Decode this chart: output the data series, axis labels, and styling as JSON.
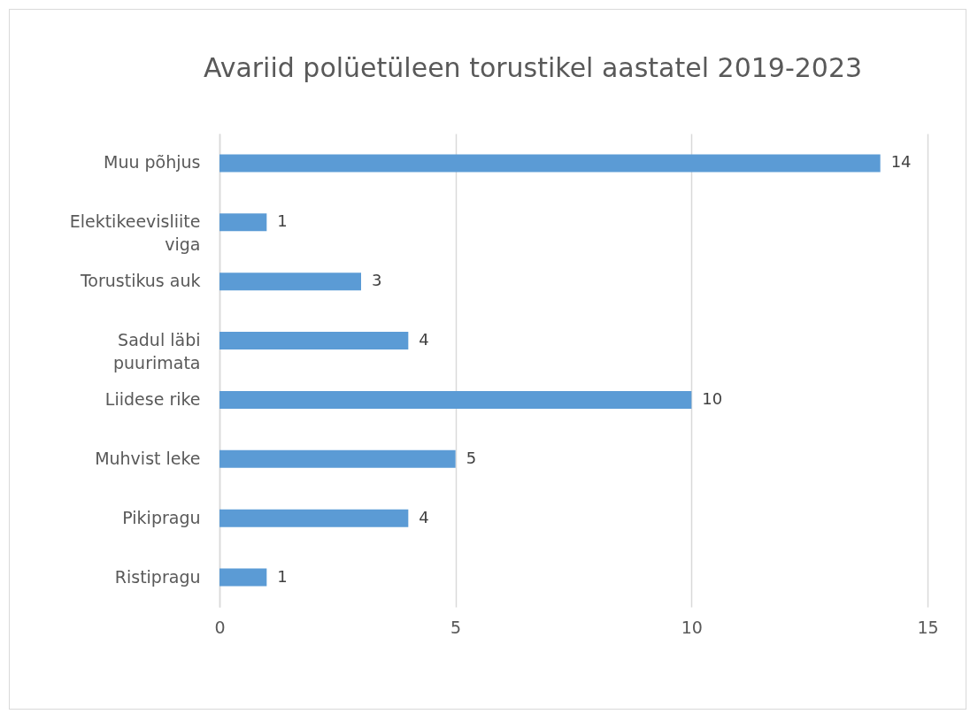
{
  "chart_data": {
    "type": "bar",
    "orientation": "horizontal",
    "title": "Avariid polüetüleen torustikel aastatel 2019-2023",
    "categories": [
      "Muu põhjus",
      "Elektikeevisliite viga",
      "Torustikus auk",
      "Sadul läbi puurimata",
      "Liidese rike",
      "Muhvist leke",
      "Pikipragu",
      "Ristipragu"
    ],
    "values": [
      14,
      1,
      3,
      4,
      10,
      5,
      4,
      1
    ],
    "color": "#5b9bd5",
    "xlim": [
      0,
      15
    ],
    "xticks": [
      0,
      5,
      10,
      15
    ],
    "grid": "x",
    "data_labels": true
  }
}
